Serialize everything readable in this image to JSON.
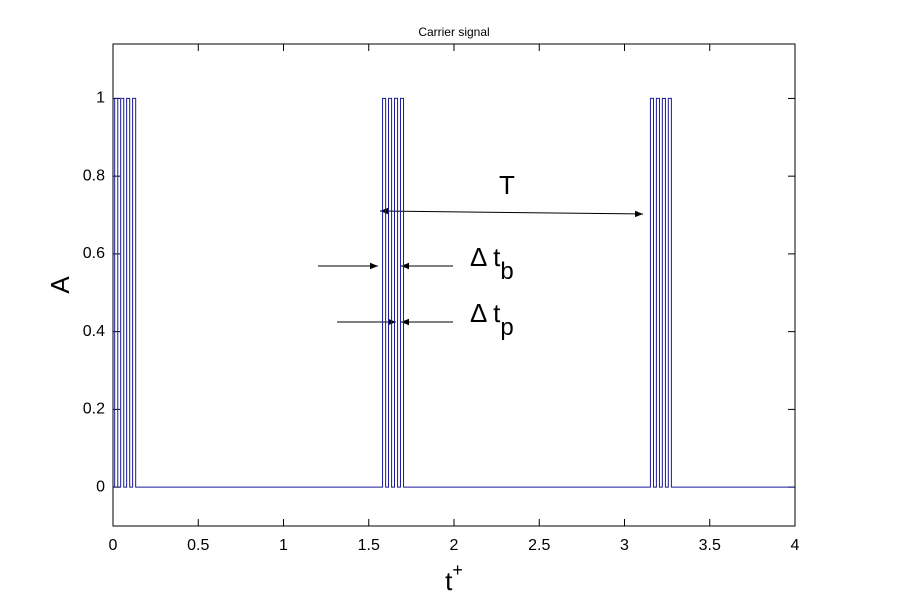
{
  "chart_data": {
    "type": "line",
    "title": "Carrier signal",
    "xlabel": {
      "text": "t",
      "sup": "+"
    },
    "ylabel": "A",
    "color": "#1a1a9c",
    "x": [
      0,
      0.01,
      0.01,
      0.028,
      0.028,
      0.045,
      0.045,
      0.063,
      0.063,
      0.08,
      0.08,
      0.098,
      0.098,
      0.115,
      0.115,
      0.133,
      0.133,
      1.581,
      1.581,
      1.599,
      1.599,
      1.616,
      1.616,
      1.634,
      1.634,
      1.651,
      1.651,
      1.669,
      1.669,
      1.686,
      1.686,
      1.704,
      1.704,
      3.152,
      3.152,
      3.17,
      3.17,
      3.187,
      3.187,
      3.205,
      3.205,
      3.222,
      3.222,
      3.24,
      3.24,
      3.257,
      3.257,
      3.275,
      3.275,
      4
    ],
    "values": [
      0,
      0,
      1,
      1,
      0,
      0,
      1,
      1,
      0,
      0,
      1,
      1,
      0,
      0,
      1,
      1,
      0,
      0,
      1,
      1,
      0,
      0,
      1,
      1,
      0,
      0,
      1,
      1,
      0,
      0,
      1,
      1,
      0,
      0,
      1,
      1,
      0,
      0,
      1,
      1,
      0,
      0,
      1,
      1,
      0,
      0,
      1,
      1,
      0,
      0
    ],
    "xlim": [
      0,
      4
    ],
    "xticks": [
      0,
      0.5,
      1,
      1.5,
      2,
      2.5,
      3,
      3.5,
      4
    ],
    "ylim": [
      -0.1,
      1.14
    ],
    "yticks": [
      0,
      0.2,
      0.4,
      0.6,
      0.8,
      1
    ],
    "grid": false,
    "annotations": [
      {
        "text": "T"
      },
      {
        "text": "Δ t",
        "sub": "b"
      },
      {
        "text": "Δ t",
        "sub": "p"
      }
    ]
  }
}
